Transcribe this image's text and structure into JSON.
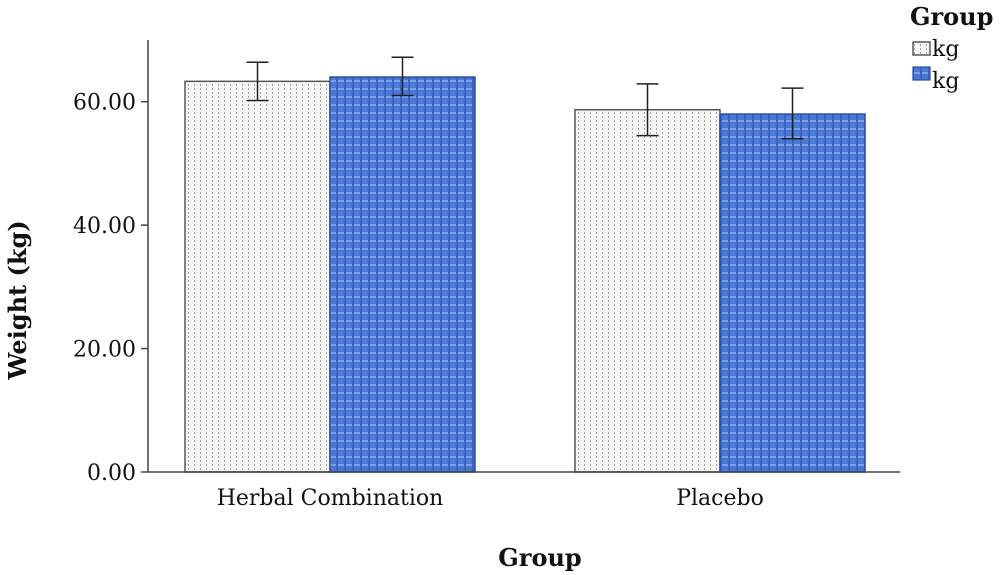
{
  "chart_data": {
    "type": "bar",
    "title": "",
    "xlabel": "Group",
    "ylabel": "Weight (kg)",
    "categories": [
      "Herbal Combination",
      "Placebo"
    ],
    "ylim": [
      0,
      70
    ],
    "yticks": [
      0,
      20,
      40,
      60
    ],
    "ytick_labels": [
      "0.00",
      "20.00",
      "40.00",
      "60.00"
    ],
    "grid": false,
    "legend": {
      "title": "Group",
      "placement": "top-right"
    },
    "series": [
      {
        "name": "kg",
        "values": [
          63.3,
          58.7
        ],
        "error_low": [
          60.2,
          54.5
        ],
        "error_high": [
          66.4,
          62.9
        ],
        "color": "#f4f4f4",
        "pattern": "dotted-vertical"
      },
      {
        "name": "kg",
        "values": [
          64.0,
          58.0
        ],
        "error_low": [
          61.0,
          54.0
        ],
        "error_high": [
          67.2,
          62.2
        ],
        "color": "#4a78d4",
        "pattern": "grid"
      }
    ]
  }
}
